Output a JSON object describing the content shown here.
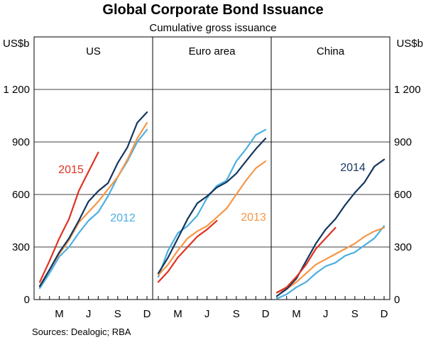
{
  "chart_data": {
    "type": "line",
    "title": "Global Corporate Bond Issuance",
    "subtitle": "Cumulative gross issuance",
    "ylabel_left": "US$b",
    "ylabel_right": "US$b",
    "ylim": [
      0,
      1500
    ],
    "yticks": [
      0,
      300,
      600,
      900,
      1200
    ],
    "ytick_labels": [
      "0",
      "300",
      "600",
      "900",
      "1 200"
    ],
    "xlim": [
      1,
      12
    ],
    "xticks": [
      3,
      6,
      9,
      12
    ],
    "xtick_labels": [
      "M",
      "J",
      "S",
      "D"
    ],
    "source": "Sources:  Dealogic; RBA",
    "colors": {
      "2012": "#4bafe0",
      "2013": "#f79646",
      "2014": "#14365e",
      "2015": "#e03323"
    },
    "panels": [
      {
        "title": "US",
        "series": [
          {
            "name": "2012",
            "x": [
              1,
              2,
              3,
              4,
              5,
              6,
              7,
              8,
              9,
              10,
              11,
              12
            ],
            "values": [
              65,
              150,
              245,
              300,
              380,
              450,
              500,
              590,
              700,
              790,
              900,
              970
            ]
          },
          {
            "name": "2013",
            "x": [
              1,
              2,
              3,
              4,
              5,
              6,
              7,
              8,
              9,
              10,
              11,
              12
            ],
            "values": [
              80,
              170,
              260,
              340,
              440,
              500,
              560,
              630,
              700,
              800,
              920,
              1010
            ]
          },
          {
            "name": "2014",
            "x": [
              1,
              2,
              3,
              4,
              5,
              6,
              7,
              8,
              9,
              10,
              11,
              12
            ],
            "values": [
              75,
              170,
              270,
              350,
              450,
              560,
              620,
              665,
              780,
              870,
              1010,
              1070
            ]
          },
          {
            "name": "2015",
            "x": [
              1,
              2,
              3,
              4,
              5,
              6,
              7
            ],
            "values": [
              100,
              220,
              350,
              460,
              620,
              730,
              840
            ]
          }
        ],
        "annotations": [
          {
            "text": "2015",
            "series": "2015"
          },
          {
            "text": "2012",
            "series": "2012"
          }
        ]
      },
      {
        "title": "Euro area",
        "series": [
          {
            "name": "2012",
            "x": [
              1,
              2,
              3,
              4,
              5,
              6,
              7,
              8,
              9,
              10,
              11,
              12
            ],
            "values": [
              130,
              280,
              380,
              420,
              480,
              580,
              650,
              680,
              790,
              860,
              940,
              970
            ]
          },
          {
            "name": "2013",
            "x": [
              1,
              2,
              3,
              4,
              5,
              6,
              7,
              8,
              9,
              10,
              11,
              12
            ],
            "values": [
              140,
              200,
              280,
              350,
              390,
              420,
              470,
              520,
              600,
              680,
              750,
              790
            ]
          },
          {
            "name": "2014",
            "x": [
              1,
              2,
              3,
              4,
              5,
              6,
              7,
              8,
              9,
              10,
              11,
              12
            ],
            "values": [
              150,
              240,
              350,
              460,
              550,
              590,
              640,
              670,
              720,
              790,
              860,
              920
            ]
          },
          {
            "name": "2015",
            "x": [
              1,
              2,
              3,
              4,
              5,
              6,
              7
            ],
            "values": [
              100,
              160,
              240,
              300,
              360,
              400,
              450
            ]
          }
        ],
        "annotations": [
          {
            "text": "2013",
            "series": "2013"
          }
        ]
      },
      {
        "title": "China",
        "series": [
          {
            "name": "2012",
            "x": [
              1,
              2,
              3,
              4,
              5,
              6,
              7,
              8,
              9,
              10,
              11,
              12
            ],
            "values": [
              5,
              30,
              70,
              100,
              150,
              190,
              210,
              250,
              270,
              310,
              350,
              420
            ]
          },
          {
            "name": "2013",
            "x": [
              1,
              2,
              3,
              4,
              5,
              6,
              7,
              8,
              9,
              10,
              11,
              12
            ],
            "values": [
              40,
              60,
              100,
              150,
              200,
              230,
              260,
              290,
              320,
              360,
              390,
              410
            ]
          },
          {
            "name": "2014",
            "x": [
              1,
              2,
              3,
              4,
              5,
              6,
              7,
              8,
              9,
              10,
              11,
              12
            ],
            "values": [
              20,
              60,
              120,
              220,
              320,
              400,
              460,
              540,
              610,
              670,
              760,
              800
            ]
          },
          {
            "name": "2015",
            "x": [
              1,
              2,
              3,
              4,
              5,
              6,
              7
            ],
            "values": [
              40,
              70,
              130,
              200,
              290,
              350,
              410
            ]
          }
        ],
        "annotations": [
          {
            "text": "2014",
            "series": "2014"
          }
        ]
      }
    ]
  }
}
